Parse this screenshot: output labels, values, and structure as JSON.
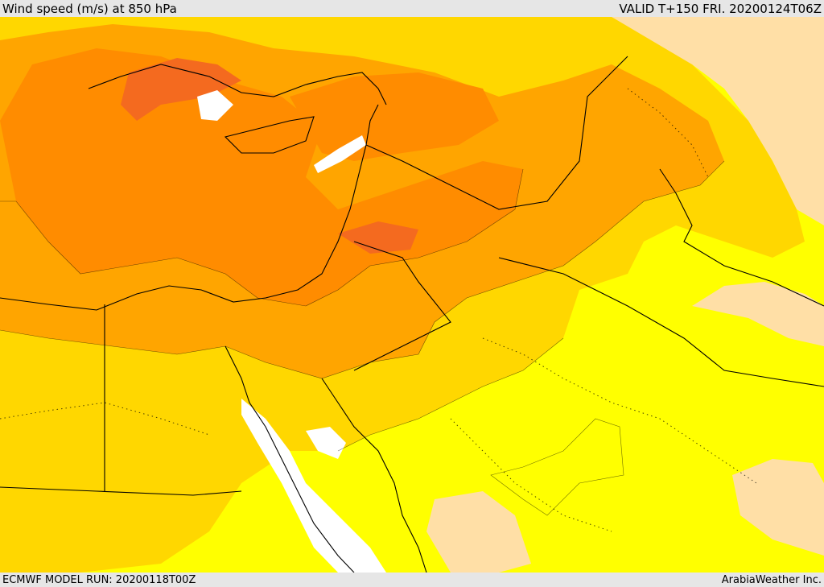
{
  "header": {
    "title": "Wind speed (m/s) at 850 hPa",
    "valid_time": "VALID T+150 FRI. 20200124T06Z"
  },
  "footer": {
    "model_run": "ECMWF MODEL RUN: 20200118T00Z",
    "credit": "ArabiaWeather Inc."
  },
  "palette": {
    "calm": "#ffffff",
    "light": "#ffdfa6",
    "yellow": "#ffff00",
    "gold": "#ffd700",
    "amber": "#ffa500",
    "orange": "#ff8c00",
    "dark_orange": "#f46a1f",
    "border": "#000000"
  }
}
